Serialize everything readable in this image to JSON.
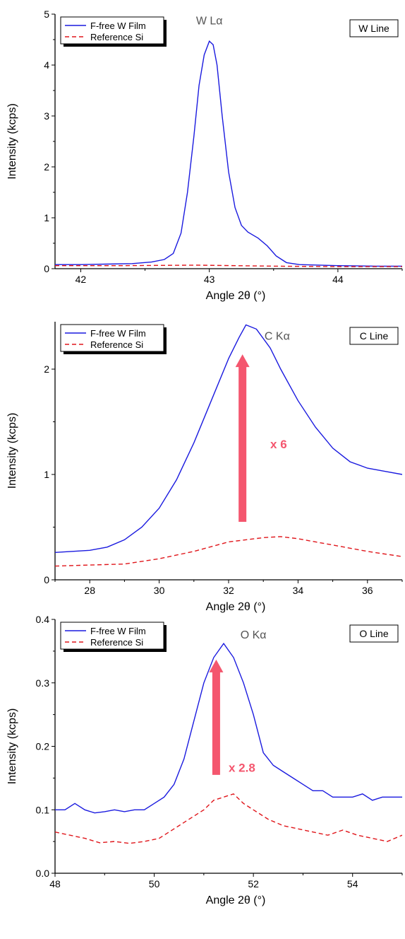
{
  "chart_data": [
    {
      "type": "line",
      "xlabel": "Angle 2θ (°)",
      "ylabel": "Intensity (kcps)",
      "xlim": [
        41.8,
        44.5
      ],
      "ylim": [
        0,
        5
      ],
      "xticks": [
        42,
        43,
        44
      ],
      "yticks": [
        0,
        1,
        2,
        3,
        4,
        5
      ],
      "grid": false,
      "legend_position": "top-left",
      "peak_label": "W Lα",
      "peak_label_at": [
        43.0,
        4.8
      ],
      "line_label": "W Line",
      "series": [
        {
          "name": "F-free W Film",
          "color": "#1a1adf",
          "style": "solid",
          "x": [
            41.8,
            42.0,
            42.2,
            42.4,
            42.55,
            42.65,
            42.72,
            42.78,
            42.83,
            42.88,
            42.92,
            42.96,
            43.0,
            43.03,
            43.06,
            43.1,
            43.15,
            43.2,
            43.25,
            43.3,
            43.38,
            43.45,
            43.52,
            43.6,
            43.7,
            44.0,
            44.3,
            44.5
          ],
          "y": [
            0.08,
            0.08,
            0.09,
            0.1,
            0.13,
            0.18,
            0.3,
            0.7,
            1.5,
            2.6,
            3.6,
            4.2,
            4.47,
            4.4,
            4.0,
            3.0,
            1.9,
            1.2,
            0.85,
            0.72,
            0.6,
            0.45,
            0.25,
            0.12,
            0.08,
            0.06,
            0.05,
            0.05
          ]
        },
        {
          "name": "Reference Si",
          "color": "#e0161b",
          "style": "dashed",
          "x": [
            41.8,
            42.3,
            42.9,
            43.5,
            44.0,
            44.5
          ],
          "y": [
            0.06,
            0.06,
            0.07,
            0.05,
            0.04,
            0.04
          ]
        }
      ]
    },
    {
      "type": "line",
      "xlabel": "Angle 2θ (°)",
      "ylabel": "Intensity (kcps)",
      "xlim": [
        27,
        37
      ],
      "ylim": [
        0,
        2.45
      ],
      "xticks": [
        28,
        30,
        32,
        34,
        36
      ],
      "yticks": [
        0,
        1,
        2
      ],
      "grid": false,
      "legend_position": "top-left",
      "peak_label": "C Kα",
      "peak_label_at": [
        33.4,
        2.28
      ],
      "line_label": "C Line",
      "annotation": {
        "text": "x 6",
        "color": "#f4566e",
        "arrow_x": 32.4,
        "arrow_from": 0.55,
        "arrow_to": 2.1,
        "text_at": [
          33.2,
          1.25
        ]
      },
      "series": [
        {
          "name": "F-free W Film",
          "color": "#1a1adf",
          "style": "solid",
          "x": [
            27,
            28,
            28.5,
            29,
            29.5,
            30,
            30.5,
            31,
            31.5,
            32,
            32.3,
            32.5,
            32.8,
            33.2,
            33.5,
            34,
            34.5,
            35,
            35.5,
            36,
            36.5,
            37
          ],
          "y": [
            0.26,
            0.28,
            0.31,
            0.38,
            0.5,
            0.68,
            0.95,
            1.3,
            1.7,
            2.1,
            2.3,
            2.42,
            2.38,
            2.2,
            2.0,
            1.7,
            1.45,
            1.25,
            1.12,
            1.06,
            1.03,
            1.0
          ]
        },
        {
          "name": "Reference Si",
          "color": "#e0161b",
          "style": "dashed",
          "x": [
            27,
            28,
            29,
            30,
            31,
            32,
            33,
            33.5,
            34,
            35,
            36,
            37
          ],
          "y": [
            0.13,
            0.14,
            0.15,
            0.2,
            0.27,
            0.36,
            0.4,
            0.41,
            0.39,
            0.33,
            0.27,
            0.22
          ]
        }
      ]
    },
    {
      "type": "line",
      "xlabel": "Angle 2θ (°)",
      "ylabel": "Intensity (kcps)",
      "xlim": [
        48,
        55
      ],
      "ylim": [
        0,
        0.4
      ],
      "xticks": [
        48,
        50,
        52,
        54
      ],
      "yticks": [
        0.0,
        0.1,
        0.2,
        0.3,
        0.4
      ],
      "ytick_labels": [
        "0.0",
        "0.1",
        "0.2",
        "0.3",
        "0.4"
      ],
      "grid": false,
      "legend_position": "top-left",
      "peak_label": "O Kα",
      "peak_label_at": [
        52.0,
        0.37
      ],
      "line_label": "O Line",
      "annotation": {
        "text": "x 2.8",
        "color": "#f4566e",
        "arrow_x": 51.25,
        "arrow_from": 0.155,
        "arrow_to": 0.33,
        "text_at": [
          51.5,
          0.16
        ]
      },
      "series": [
        {
          "name": "F-free W Film",
          "color": "#1a1adf",
          "style": "solid",
          "x": [
            48,
            48.2,
            48.4,
            48.6,
            48.8,
            49.0,
            49.2,
            49.4,
            49.6,
            49.8,
            50.0,
            50.2,
            50.4,
            50.6,
            50.8,
            51.0,
            51.2,
            51.4,
            51.6,
            51.8,
            52.0,
            52.2,
            52.4,
            52.6,
            52.8,
            53.0,
            53.2,
            53.4,
            53.6,
            53.8,
            54.0,
            54.2,
            54.4,
            54.6,
            54.8,
            55.0
          ],
          "y": [
            0.1,
            0.1,
            0.11,
            0.1,
            0.095,
            0.097,
            0.1,
            0.097,
            0.1,
            0.1,
            0.11,
            0.12,
            0.14,
            0.18,
            0.24,
            0.3,
            0.34,
            0.362,
            0.34,
            0.3,
            0.25,
            0.19,
            0.17,
            0.16,
            0.15,
            0.14,
            0.13,
            0.13,
            0.12,
            0.12,
            0.12,
            0.125,
            0.115,
            0.12,
            0.12,
            0.12
          ]
        },
        {
          "name": "Reference Si",
          "color": "#e0161b",
          "style": "dashed",
          "x": [
            48,
            48.3,
            48.6,
            48.9,
            49.2,
            49.5,
            49.8,
            50.1,
            50.4,
            50.7,
            51.0,
            51.2,
            51.4,
            51.6,
            51.8,
            52.0,
            52.3,
            52.6,
            52.9,
            53.2,
            53.5,
            53.8,
            54.1,
            54.4,
            54.7,
            55.0
          ],
          "y": [
            0.065,
            0.06,
            0.055,
            0.048,
            0.05,
            0.047,
            0.05,
            0.055,
            0.07,
            0.085,
            0.1,
            0.115,
            0.12,
            0.125,
            0.11,
            0.1,
            0.085,
            0.075,
            0.07,
            0.065,
            0.06,
            0.068,
            0.06,
            0.055,
            0.05,
            0.06
          ]
        }
      ]
    }
  ]
}
